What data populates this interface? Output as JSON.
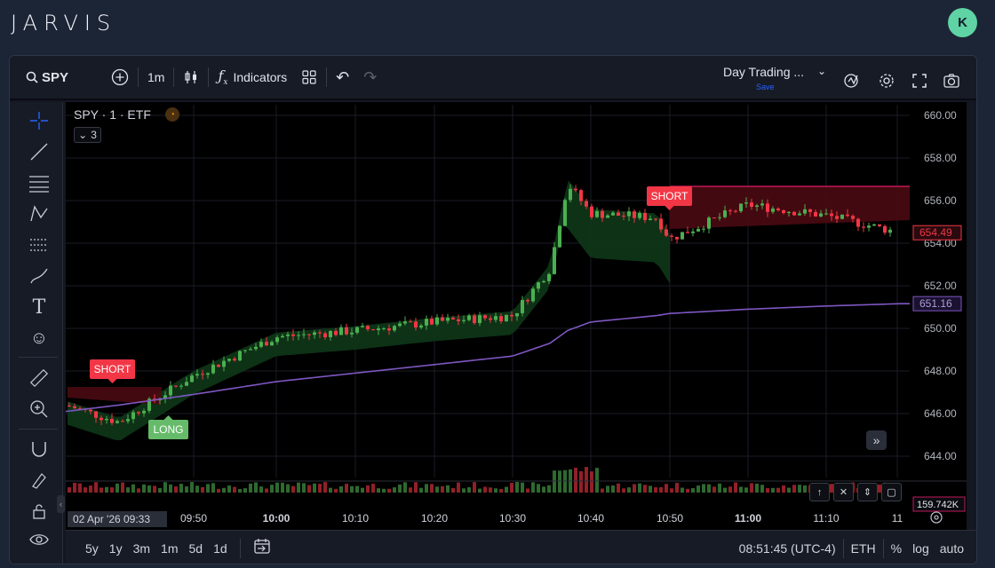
{
  "app": {
    "brand": "JARVIS",
    "avatar_letter": "K"
  },
  "toolbar": {
    "symbol": "SPY",
    "interval": "1m",
    "indicators_label": "Indicators",
    "layout_name": "Day Trading ...",
    "layout_save": "Save"
  },
  "legend": {
    "title": "SPY · 1 · ETF",
    "collapsed_count": "3"
  },
  "axis": {
    "price_ticks": [
      "660.00",
      "658.00",
      "656.00",
      "654.00",
      "652.00",
      "650.00",
      "648.00",
      "646.00",
      "644.00"
    ],
    "time_ticks": [
      "09:50",
      "10:00",
      "10:10",
      "10:20",
      "10:30",
      "10:40",
      "10:50",
      "11:00",
      "11:10",
      "11"
    ],
    "cursor_time": "02 Apr '26   09:33",
    "last_price": "654.49",
    "vwap_price": "651.16",
    "volume_label": "159.742K"
  },
  "signals": {
    "short_1": "SHORT",
    "long_1": "LONG",
    "short_2": "SHORT"
  },
  "bottom": {
    "ranges": [
      "5y",
      "1y",
      "3m",
      "1m",
      "5d",
      "1d"
    ],
    "clock": "08:51:45 (UTC-4)",
    "session": "ETH",
    "percent": "%",
    "log": "log",
    "auto": "auto"
  },
  "colors": {
    "up": "#4caf50",
    "down": "#f23645",
    "vwap": "#7e57c2",
    "background": "#000000",
    "frame": "#1c2536"
  },
  "chart_data": {
    "type": "candlestick",
    "title": "SPY · 1 · ETF",
    "ylim": [
      643.0,
      660.5
    ],
    "grid": true,
    "x": [
      "09:33",
      "09:40",
      "09:50",
      "10:00",
      "10:10",
      "10:20",
      "10:30",
      "10:34",
      "10:36",
      "10:40",
      "10:48",
      "10:50",
      "11:00",
      "11:10",
      "11:14"
    ],
    "series": [
      {
        "values": [
          646.4,
          645.6,
          647.8,
          649.6,
          649.9,
          650.3,
          650.6,
          652.8,
          656.8,
          655.4,
          655.2,
          654.2,
          655.8,
          655.3,
          654.49
        ]
      },
      {
        "values": [
          646.1,
          646.4,
          646.9,
          647.5,
          647.9,
          648.3,
          648.7,
          649.3,
          649.9,
          650.3,
          650.6,
          650.7,
          650.9,
          651.05,
          651.16
        ]
      }
    ]
  }
}
